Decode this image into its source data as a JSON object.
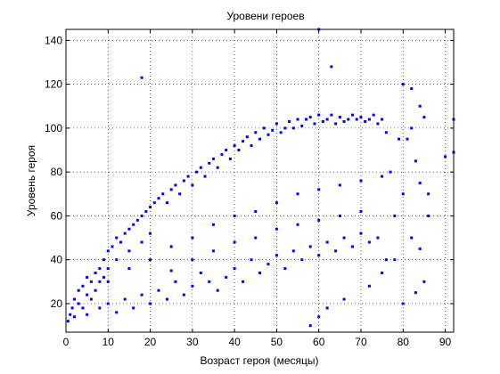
{
  "chart_data": {
    "type": "scatter",
    "title": "Уровени героев",
    "xlabel": "Возраст героя (месяцы)",
    "ylabel": "Уровень героя",
    "xlim": [
      0,
      92
    ],
    "ylim": [
      7,
      145
    ],
    "xticks": [
      0,
      10,
      20,
      30,
      40,
      50,
      60,
      70,
      80,
      90
    ],
    "yticks": [
      20,
      40,
      60,
      80,
      100,
      120,
      140
    ],
    "grid": true,
    "marker": "dot",
    "color": "#0000ff",
    "series": [
      {
        "values": [
          [
            0.5,
            12
          ],
          [
            1,
            15
          ],
          [
            1.5,
            18
          ],
          [
            2,
            14
          ],
          [
            2,
            22
          ],
          [
            3,
            20
          ],
          [
            3,
            26
          ],
          [
            4,
            18
          ],
          [
            4,
            28
          ],
          [
            5,
            24
          ],
          [
            5,
            32
          ],
          [
            6,
            30
          ],
          [
            6,
            22
          ],
          [
            7,
            34
          ],
          [
            7,
            26
          ],
          [
            8,
            36
          ],
          [
            8,
            30
          ],
          [
            9,
            40
          ],
          [
            9,
            32
          ],
          [
            10,
            44
          ],
          [
            10,
            36
          ],
          [
            11,
            46
          ],
          [
            12,
            50
          ],
          [
            12,
            40
          ],
          [
            13,
            48
          ],
          [
            14,
            52
          ],
          [
            15,
            54
          ],
          [
            15,
            44
          ],
          [
            16,
            56
          ],
          [
            17,
            58
          ],
          [
            18,
            60
          ],
          [
            18,
            48
          ],
          [
            19,
            62
          ],
          [
            20,
            64
          ],
          [
            20,
            52
          ],
          [
            21,
            66
          ],
          [
            22,
            68
          ],
          [
            23,
            70
          ],
          [
            24,
            66
          ],
          [
            25,
            72
          ],
          [
            26,
            74
          ],
          [
            27,
            70
          ],
          [
            28,
            76
          ],
          [
            29,
            78
          ],
          [
            30,
            74
          ],
          [
            31,
            80
          ],
          [
            32,
            82
          ],
          [
            33,
            78
          ],
          [
            34,
            84
          ],
          [
            35,
            86
          ],
          [
            36,
            82
          ],
          [
            37,
            88
          ],
          [
            38,
            90
          ],
          [
            39,
            86
          ],
          [
            40,
            92
          ],
          [
            41,
            90
          ],
          [
            42,
            94
          ],
          [
            43,
            96
          ],
          [
            44,
            92
          ],
          [
            45,
            98
          ],
          [
            46,
            95
          ],
          [
            47,
            100
          ],
          [
            48,
            97
          ],
          [
            49,
            99
          ],
          [
            50,
            102
          ],
          [
            51,
            98
          ],
          [
            52,
            100
          ],
          [
            53,
            103
          ],
          [
            54,
            100
          ],
          [
            55,
            104
          ],
          [
            56,
            101
          ],
          [
            57,
            104
          ],
          [
            58,
            105
          ],
          [
            59,
            102
          ],
          [
            60,
            106
          ],
          [
            61,
            103
          ],
          [
            62,
            104
          ],
          [
            63,
            106
          ],
          [
            64,
            102
          ],
          [
            65,
            105
          ],
          [
            66,
            103
          ],
          [
            67,
            104
          ],
          [
            68,
            106
          ],
          [
            69,
            104
          ],
          [
            70,
            105
          ],
          [
            71,
            103
          ],
          [
            72,
            104
          ],
          [
            73,
            106
          ],
          [
            74,
            102
          ],
          [
            75,
            104
          ],
          [
            5,
            15
          ],
          [
            8,
            18
          ],
          [
            10,
            20
          ],
          [
            12,
            16
          ],
          [
            14,
            22
          ],
          [
            16,
            18
          ],
          [
            18,
            24
          ],
          [
            20,
            20
          ],
          [
            22,
            26
          ],
          [
            24,
            22
          ],
          [
            26,
            30
          ],
          [
            28,
            24
          ],
          [
            30,
            28
          ],
          [
            32,
            34
          ],
          [
            34,
            30
          ],
          [
            36,
            26
          ],
          [
            38,
            32
          ],
          [
            40,
            36
          ],
          [
            42,
            30
          ],
          [
            44,
            40
          ],
          [
            46,
            34
          ],
          [
            48,
            38
          ],
          [
            50,
            42
          ],
          [
            52,
            36
          ],
          [
            54,
            44
          ],
          [
            56,
            40
          ],
          [
            58,
            46
          ],
          [
            60,
            42
          ],
          [
            62,
            48
          ],
          [
            64,
            44
          ],
          [
            66,
            50
          ],
          [
            68,
            46
          ],
          [
            70,
            52
          ],
          [
            72,
            48
          ],
          [
            74,
            50
          ],
          [
            10,
            30
          ],
          [
            15,
            36
          ],
          [
            20,
            40
          ],
          [
            25,
            46
          ],
          [
            30,
            50
          ],
          [
            35,
            56
          ],
          [
            40,
            60
          ],
          [
            45,
            62
          ],
          [
            50,
            66
          ],
          [
            55,
            70
          ],
          [
            60,
            72
          ],
          [
            65,
            74
          ],
          [
            70,
            76
          ],
          [
            75,
            78
          ],
          [
            25,
            35
          ],
          [
            30,
            40
          ],
          [
            35,
            44
          ],
          [
            40,
            48
          ],
          [
            45,
            50
          ],
          [
            50,
            54
          ],
          [
            55,
            56
          ],
          [
            60,
            58
          ],
          [
            65,
            60
          ],
          [
            70,
            62
          ],
          [
            58,
            10
          ],
          [
            60,
            14
          ],
          [
            62,
            18
          ],
          [
            66,
            22
          ],
          [
            72,
            28
          ],
          [
            75,
            34
          ],
          [
            76,
            40
          ],
          [
            78,
            60
          ],
          [
            80,
            70
          ],
          [
            81,
            95
          ],
          [
            82,
            100
          ],
          [
            83,
            85
          ],
          [
            84,
            75
          ],
          [
            82,
            50
          ],
          [
            84,
            45
          ],
          [
            85,
            30
          ],
          [
            83,
            25
          ],
          [
            86,
            60
          ],
          [
            84,
            110
          ],
          [
            80,
            120
          ],
          [
            82,
            118
          ],
          [
            85,
            105
          ],
          [
            86,
            70
          ],
          [
            90,
            87
          ],
          [
            92,
            104
          ],
          [
            92,
            89
          ],
          [
            18,
            123
          ],
          [
            60,
            145
          ],
          [
            63,
            128
          ],
          [
            80,
            20
          ],
          [
            78,
            40
          ],
          [
            77,
            80
          ],
          [
            79,
            95
          ],
          [
            76,
            98
          ]
        ]
      }
    ]
  }
}
